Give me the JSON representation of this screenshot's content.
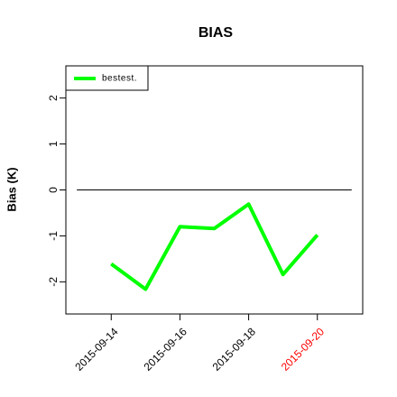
{
  "chart_data": {
    "type": "line",
    "title": "BIAS",
    "y_label": "Bias (K)",
    "x": [
      "2015-09-14",
      "2015-09-15",
      "2015-09-16",
      "2015-09-17",
      "2015-09-18",
      "2015-09-19",
      "2015-09-20"
    ],
    "series": [
      {
        "name": "bestest.",
        "color": "#00ff00",
        "values": [
          -1.61,
          -2.16,
          -0.8,
          -0.84,
          -0.31,
          -1.84,
          -0.98
        ]
      }
    ],
    "xlim": [
      "2015-09-13",
      "2015-09-21"
    ],
    "xticks": [
      "2015-09-14",
      "2015-09-16",
      "2015-09-18",
      "2015-09-20"
    ],
    "xtick_colors": [
      "#000000",
      "#000000",
      "#000000",
      "#ff0000"
    ],
    "ylim": [
      -2.5,
      2.5
    ],
    "yticks": [
      -2,
      -1,
      0,
      1,
      2
    ],
    "hline": 0,
    "legend": "top-left"
  }
}
